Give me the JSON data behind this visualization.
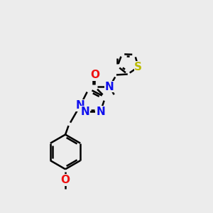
{
  "background_color": "#ececec",
  "atom_colors": {
    "C": "#000000",
    "N": "#1010ee",
    "O": "#ee1010",
    "S": "#bbbb00"
  },
  "bond_color": "#000000",
  "bond_width": 1.8,
  "font_size_atom": 11,
  "font_size_small": 9,
  "xlim": [
    0,
    10
  ],
  "ylim": [
    0,
    10
  ]
}
